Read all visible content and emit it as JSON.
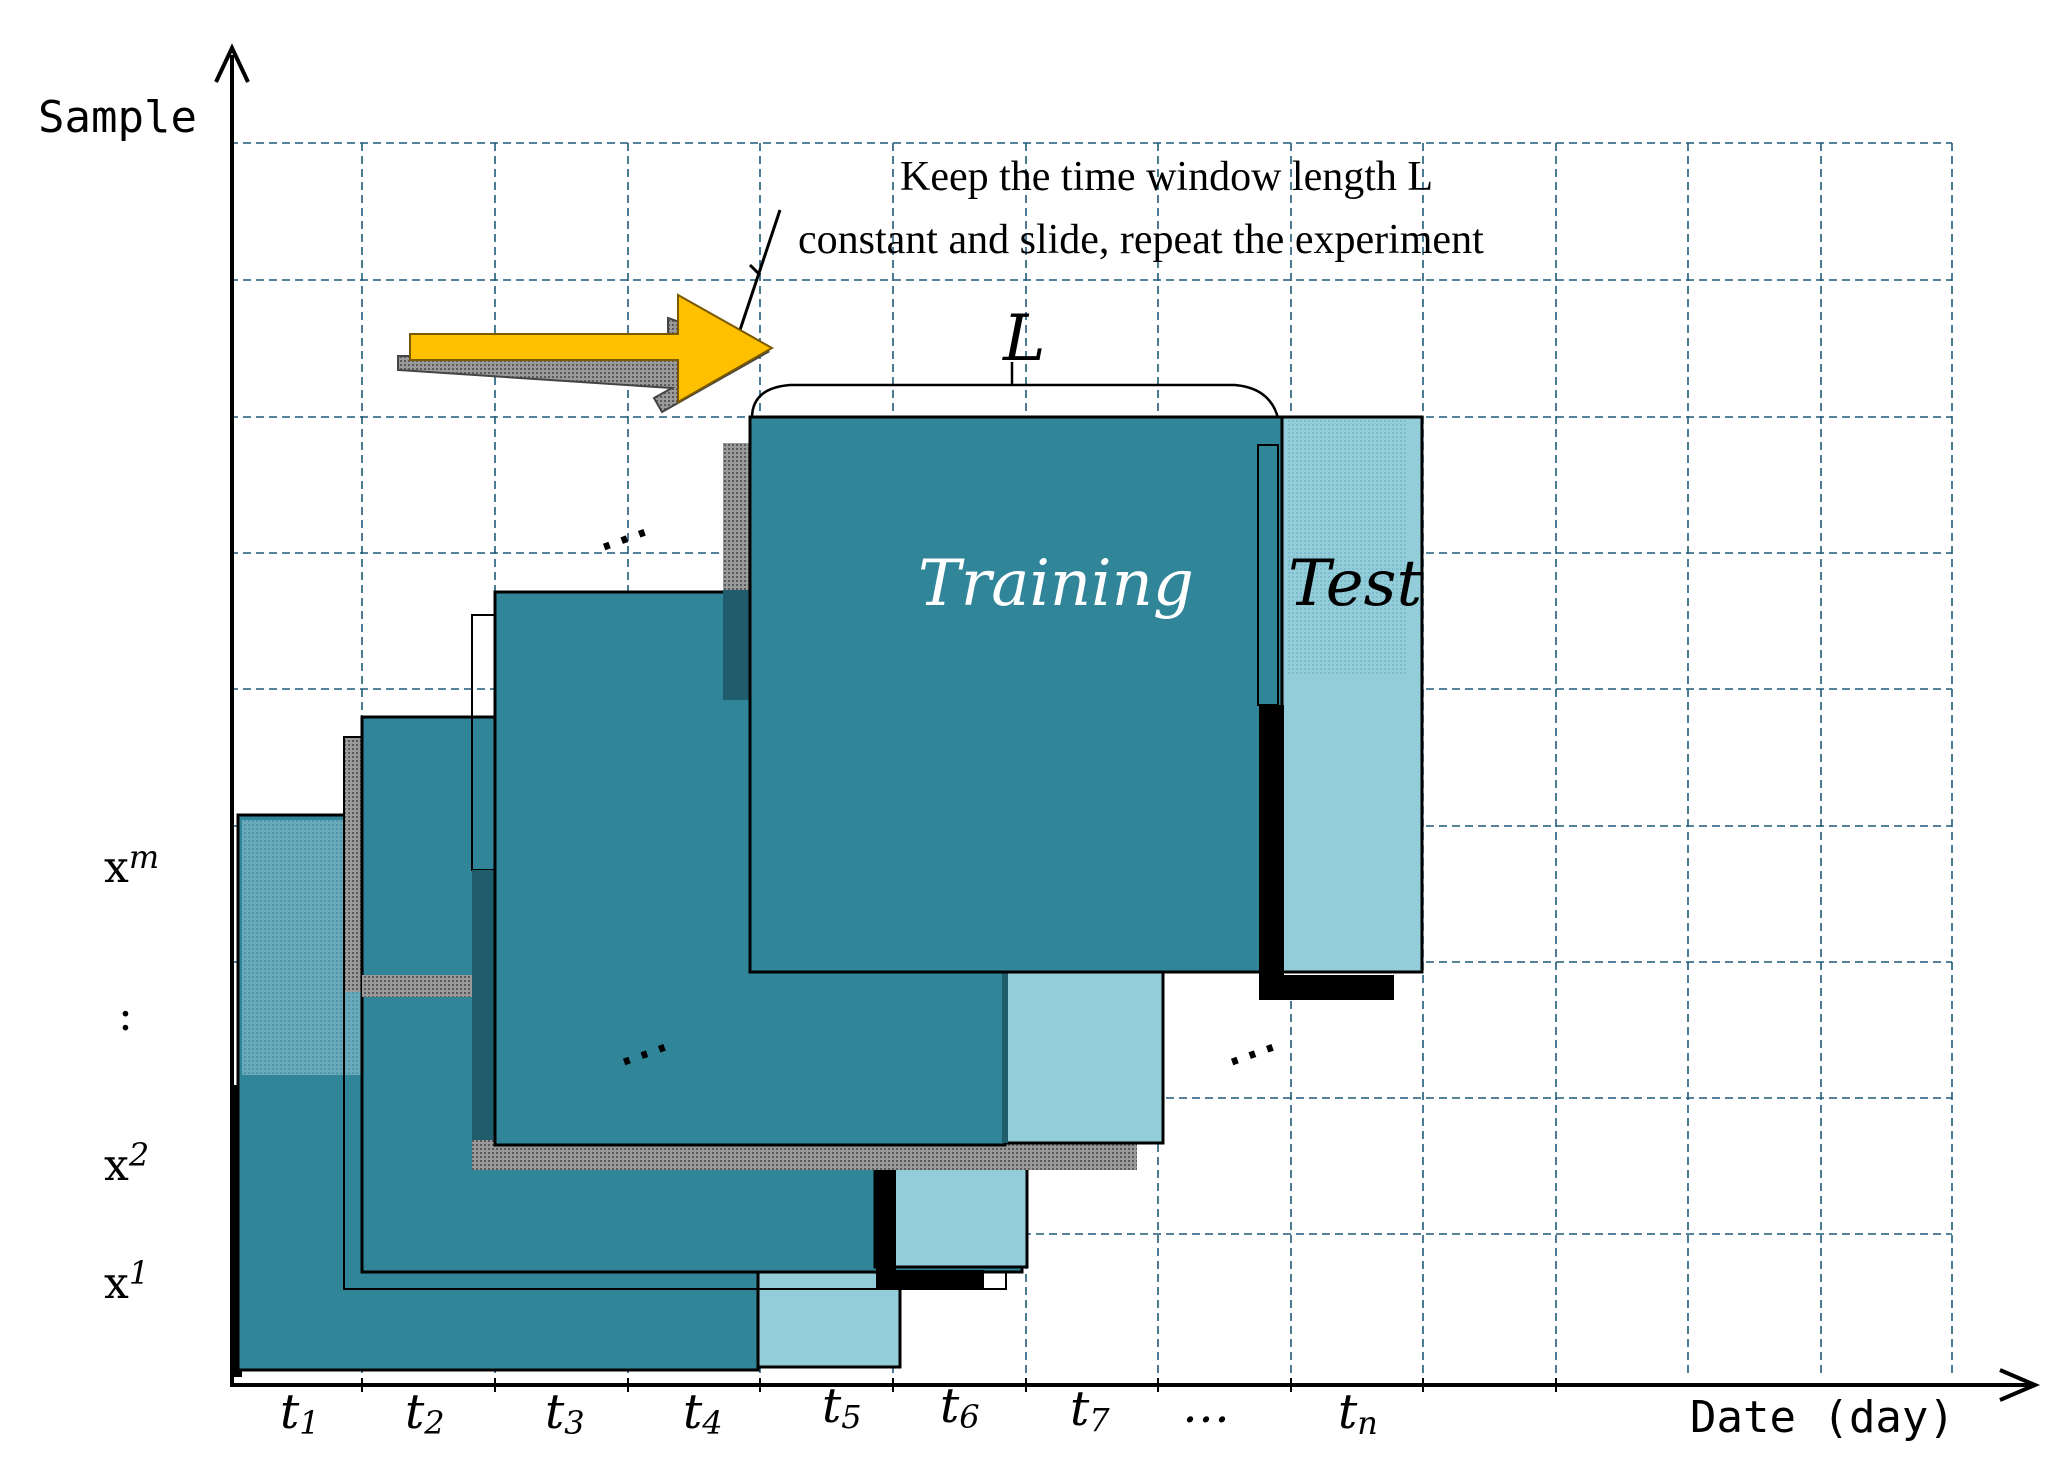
{
  "axes": {
    "y_title": "Sample",
    "x_title": "Date (day)"
  },
  "x_ticks": [
    {
      "base": "t",
      "sub": "1"
    },
    {
      "base": "t",
      "sub": "2"
    },
    {
      "base": "t",
      "sub": "3"
    },
    {
      "base": "t",
      "sub": "4"
    },
    {
      "base": "t",
      "sub": "5"
    },
    {
      "base": "t",
      "sub": "6"
    },
    {
      "base": "t",
      "sub": "7"
    },
    {
      "base": "…",
      "sub": ""
    },
    {
      "base": "t",
      "sub": "n"
    }
  ],
  "y_ticks": [
    {
      "base": "x",
      "sub": "m"
    },
    {
      "base": ":",
      "sub": ""
    },
    {
      "base": "x",
      "sub": "2"
    },
    {
      "base": "x",
      "sub": "1"
    }
  ],
  "annotation": {
    "line1": "Keep   the   time   window   length   L",
    "line2": "constant and slide, repeat the experiment"
  },
  "window_label": "L",
  "training_label": "Training",
  "test_label": "Test",
  "ellipsis": "…",
  "colors": {
    "training": "#318599",
    "test": "#93cdd9",
    "arrow": "#ffc000",
    "grid": "#1f5a7a"
  }
}
